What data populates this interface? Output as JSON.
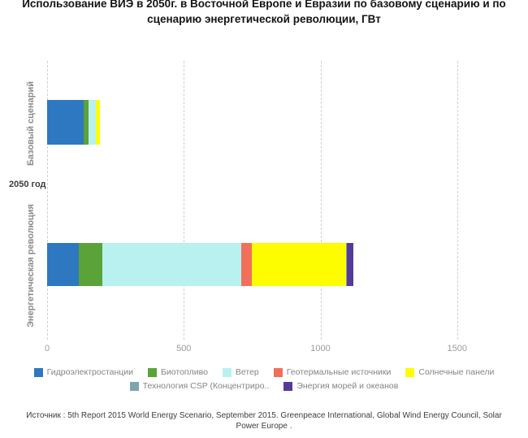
{
  "source_note": "Источник : 5th Report 2015 World Energy Scenario, September 2015. Greenpeace International, Global Wind Energy Council, Solar Power Europe .",
  "chart_data": {
    "type": "bar",
    "orientation": "horizontal",
    "stacked": true,
    "title": "Использование ВИЭ в 2050г. в Восточной Европе и Евразии по базовому сценарию и по сценарию энергетической революции, ГВт",
    "unit": "ГВт",
    "axis_group_label": "2050 год",
    "categories": [
      "Базовый сценарий",
      "Энергетическая революция"
    ],
    "series": [
      {
        "name": "Гидроэлектростанции",
        "color": "#2d78c0",
        "values": [
          135,
          116
        ]
      },
      {
        "name": "Биотопливо",
        "color": "#5ba338",
        "values": [
          18,
          86
        ]
      },
      {
        "name": "Ветер",
        "color": "#b8f1f0",
        "values": [
          24,
          508
        ]
      },
      {
        "name": "Геотермальные источники",
        "color": "#f1705a",
        "values": [
          2,
          39
        ]
      },
      {
        "name": "Солнечные панели",
        "color": "#fdfd00",
        "values": [
          15,
          345
        ]
      },
      {
        "name": "Технология CSP (Концентриро..",
        "color": "#7fa4ad",
        "values": [
          0,
          2
        ]
      },
      {
        "name": "Энергия морей и океанов",
        "color": "#553a99",
        "values": [
          0,
          24
        ]
      }
    ],
    "x_ticks": [
      0,
      500,
      1000,
      1500
    ],
    "xlim": [
      0,
      1670
    ],
    "xlabel": "",
    "ylabel": "",
    "grid": "dashed-vertical",
    "legend_position": "bottom"
  }
}
